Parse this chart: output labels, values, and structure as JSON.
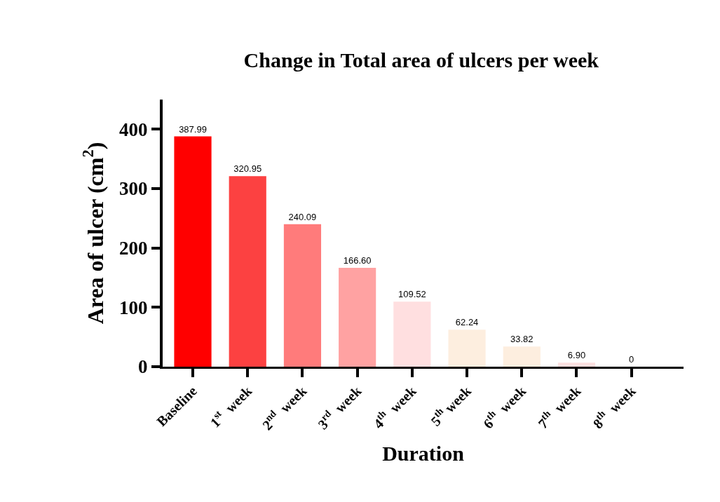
{
  "chart_data": {
    "type": "bar",
    "title": "Change in Total area of ulcers per week",
    "xlabel": "Duration",
    "ylabel": "Area of ulcer (cm$^{2}$)",
    "categories": [
      "Baseline",
      "1$^{st}$  week",
      "2$^{nd}$  week",
      "3$^{rd}$  week",
      "4$^{th}$  week",
      "5$^{th}$ week",
      "6$^{th}$  week",
      "7$^{th}$  week",
      "8$^{th}$  week"
    ],
    "values": [
      387.99,
      320.95,
      240.09,
      166.6,
      109.52,
      62.24,
      33.82,
      6.9,
      0
    ],
    "value_labels": [
      "387.99",
      "320.95",
      "240.09",
      "166.60",
      "109.52",
      "62.24",
      "33.82",
      "6.90",
      "0"
    ],
    "colors": [
      "#ff0000",
      "#fc4141",
      "#ff7b7b",
      "#ffa2a2",
      "#ffdfe0",
      "#fdeedf",
      "#fdeedf",
      "#fde0e0",
      "#fde0e0"
    ],
    "ylim": [
      0,
      450
    ],
    "yticks": [
      0,
      100,
      200,
      300,
      400
    ],
    "grid": false
  }
}
